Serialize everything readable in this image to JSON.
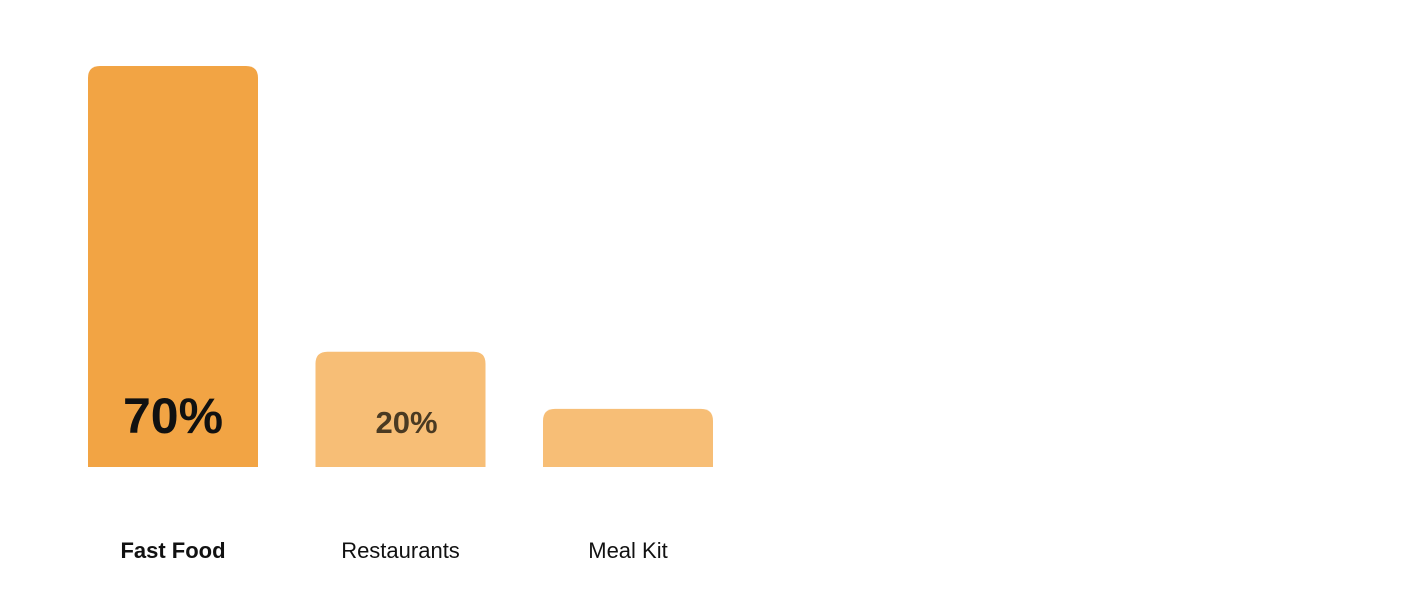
{
  "chart_data": {
    "type": "bar",
    "categories": [
      "Fast Food",
      "Restaurants",
      "Meal Kit"
    ],
    "values": [
      70,
      20,
      10
    ],
    "value_labels": [
      "70%",
      "20%",
      ""
    ],
    "ylim": [
      0,
      70
    ],
    "grid": false,
    "legend": "none",
    "emphasized_category": "Fast Food",
    "colors": {
      "primary_bar": "#F2A444",
      "secondary_bar": "#F7BE76",
      "baseline": "#F2A444",
      "baseline_fade": "#FBEBD3",
      "primary_label": "#111111",
      "secondary_label": "#4A3A22"
    }
  }
}
